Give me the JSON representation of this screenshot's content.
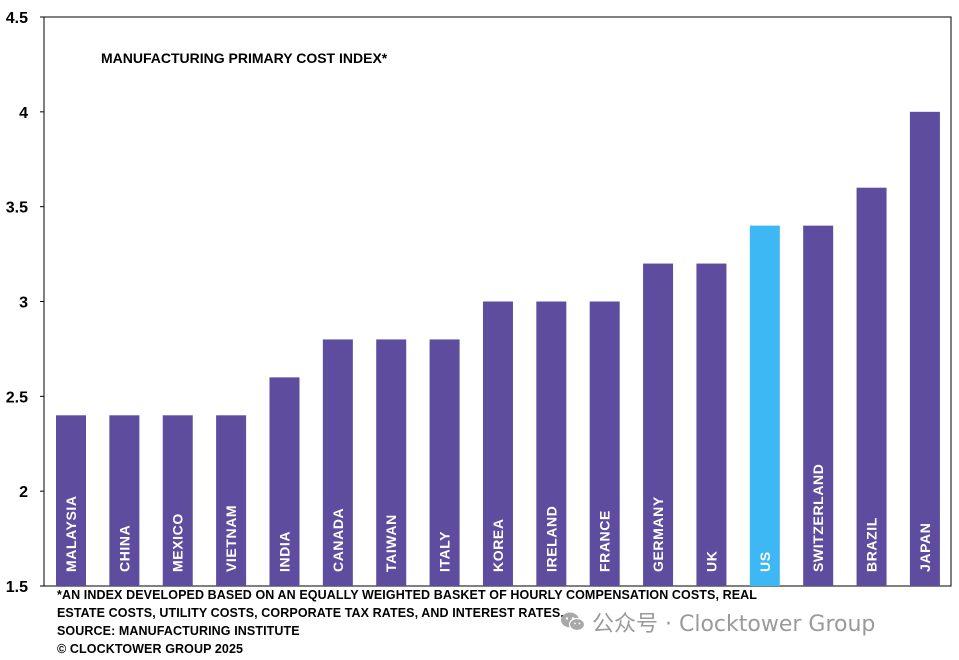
{
  "chart_data": {
    "type": "bar",
    "title": "MANUFACTURING PRIMARY COST INDEX*",
    "categories": [
      "MALAYSIA",
      "CHINA",
      "MEXICO",
      "VIETNAM",
      "INDIA",
      "CANADA",
      "TAIWAN",
      "ITALY",
      "KOREA",
      "IRELAND",
      "FRANCE",
      "GERMANY",
      "UK",
      "US",
      "SWITZERLAND",
      "BRAZIL",
      "JAPAN"
    ],
    "values": [
      2.4,
      2.4,
      2.4,
      2.4,
      2.6,
      2.8,
      2.8,
      2.8,
      3.0,
      3.0,
      3.0,
      3.2,
      3.2,
      3.4,
      3.4,
      3.6,
      4.0
    ],
    "highlight_category": "US",
    "ylim": [
      1.5,
      4.5
    ],
    "yticks": [
      "1.5",
      "2",
      "2.5",
      "3",
      "3.5",
      "4",
      "4.5"
    ],
    "xlabel": "",
    "ylabel": "",
    "grid": false,
    "bar_color": "#5e4c9e",
    "highlight_color": "#3db8f5",
    "category_label_placement": "inside-bar-bottom"
  },
  "footnote": {
    "line1": "*AN INDEX DEVELOPED BASED ON AN EQUALLY WEIGHTED BASKET OF HOURLY COMPENSATION COSTS, REAL",
    "line2": "ESTATE COSTS, UTILITY COSTS, CORPORATE TAX RATES, AND INTEREST RATES.",
    "source": "SOURCE: MANUFACTURING INSTITUTE",
    "copyright": "© CLOCKTOWER GROUP 2025"
  },
  "watermark": {
    "text": "公众号 · Clocktower Group",
    "icon": "wechat-icon"
  }
}
